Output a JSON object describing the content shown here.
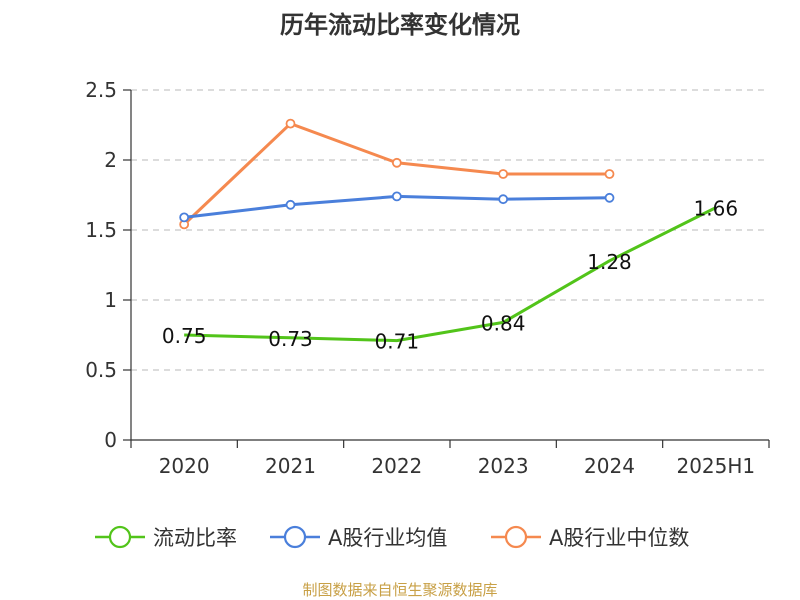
{
  "source_note": "制图数据来自恒生聚源数据库",
  "colors": {
    "axis": "#333333",
    "grid": "#c8c8c8",
    "source": "#c8a046",
    "series": [
      "#52c41a",
      "#4a7fdb",
      "#f5894f"
    ]
  },
  "chart_data": {
    "type": "line",
    "title": "历年流动比率变化情况",
    "xlabel": "",
    "ylabel": "",
    "categories": [
      "2020",
      "2021",
      "2022",
      "2023",
      "2024",
      "2025H1"
    ],
    "y_ticks": [
      "0",
      "0.5",
      "1",
      "1.5",
      "2",
      "2.5"
    ],
    "ylim": [
      0,
      2.5
    ],
    "grid": true,
    "legend_position": "bottom",
    "series": [
      {
        "name": "流动比率",
        "values": [
          0.75,
          0.73,
          0.71,
          0.84,
          1.28,
          1.66
        ],
        "labels": [
          "0.75",
          "0.73",
          "0.71",
          "0.84",
          "1.28",
          "1.66"
        ]
      },
      {
        "name": "A股行业均值",
        "values": [
          1.59,
          1.68,
          1.74,
          1.72,
          1.73,
          null
        ]
      },
      {
        "name": "A股行业中位数",
        "values": [
          1.54,
          2.26,
          1.98,
          1.9,
          1.9,
          null
        ]
      }
    ]
  }
}
